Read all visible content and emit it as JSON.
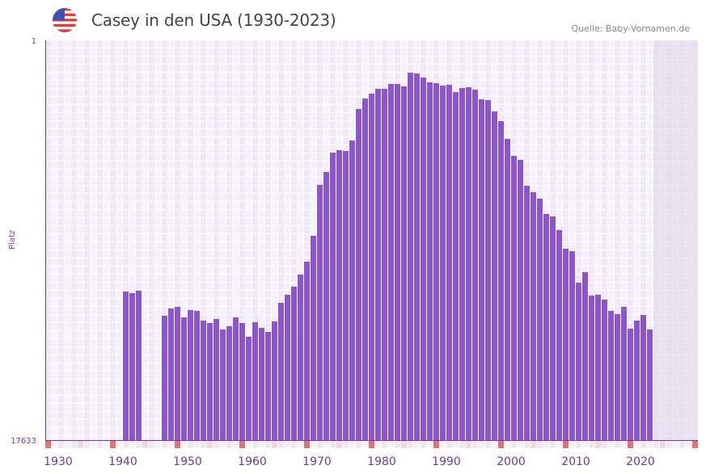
{
  "header": {
    "title": "Casey in den USA (1930-2023)",
    "source": "Quelle: Baby-Vornamen.de",
    "flag_icon": "us-flag-icon"
  },
  "colors": {
    "bar": "#8e55c8",
    "axis": "#6a3d9a",
    "marker_decade": "#e57373",
    "marker_half": "#f3d6de",
    "future_shade": "#e2dcec"
  },
  "chart_data": {
    "type": "bar",
    "title": "Casey in den USA (1930-2023)",
    "xlabel": "",
    "ylabel": "Platz",
    "y_reversed": true,
    "ylim": [
      1,
      17633
    ],
    "xlim": [
      1928,
      2028
    ],
    "y_ticks": [
      "1",
      "17633"
    ],
    "x_ticks": [
      1930,
      1940,
      1950,
      1960,
      1970,
      1980,
      1990,
      2000,
      2010,
      2020
    ],
    "future_from": 2022,
    "grid": true,
    "years": [
      1940,
      1941,
      1942,
      1946,
      1947,
      1948,
      1949,
      1950,
      1951,
      1952,
      1953,
      1954,
      1955,
      1956,
      1957,
      1958,
      1959,
      1960,
      1961,
      1962,
      1963,
      1964,
      1965,
      1966,
      1967,
      1968,
      1969,
      1970,
      1971,
      1972,
      1973,
      1974,
      1975,
      1976,
      1977,
      1978,
      1979,
      1980,
      1981,
      1982,
      1983,
      1984,
      1985,
      1986,
      1987,
      1988,
      1989,
      1990,
      1991,
      1992,
      1993,
      1994,
      1995,
      1996,
      1997,
      1998,
      1999,
      2000,
      2001,
      2002,
      2003,
      2004,
      2005,
      2006,
      2007,
      2008,
      2009,
      2010,
      2011,
      2012,
      2013,
      2014,
      2015,
      2016,
      2017,
      2018,
      2019,
      2020,
      2021
    ],
    "values": [
      11079,
      11149,
      11042,
      12147,
      11826,
      11755,
      12218,
      11898,
      11934,
      12361,
      12468,
      12290,
      12753,
      12610,
      12218,
      12468,
      13073,
      12432,
      12682,
      12860,
      12397,
      11577,
      11221,
      10865,
      10330,
      9761,
      8621,
      6377,
      5807,
      4952,
      4845,
      4881,
      4418,
      3029,
      2566,
      2352,
      2138,
      2138,
      1924,
      1924,
      2031,
      1426,
      1461,
      1639,
      1853,
      1889,
      1995,
      1960,
      2281,
      2103,
      2067,
      2174,
      2601,
      2637,
      3135,
      3563,
      4347,
      5094,
      5272,
      6412,
      6697,
      6982,
      7659,
      7766,
      8372,
      9191,
      9298,
      10687,
      10224,
      11257,
      11221,
      11435,
      11934,
      12076,
      11755,
      12718,
      12361,
      12112,
      12753
    ]
  }
}
